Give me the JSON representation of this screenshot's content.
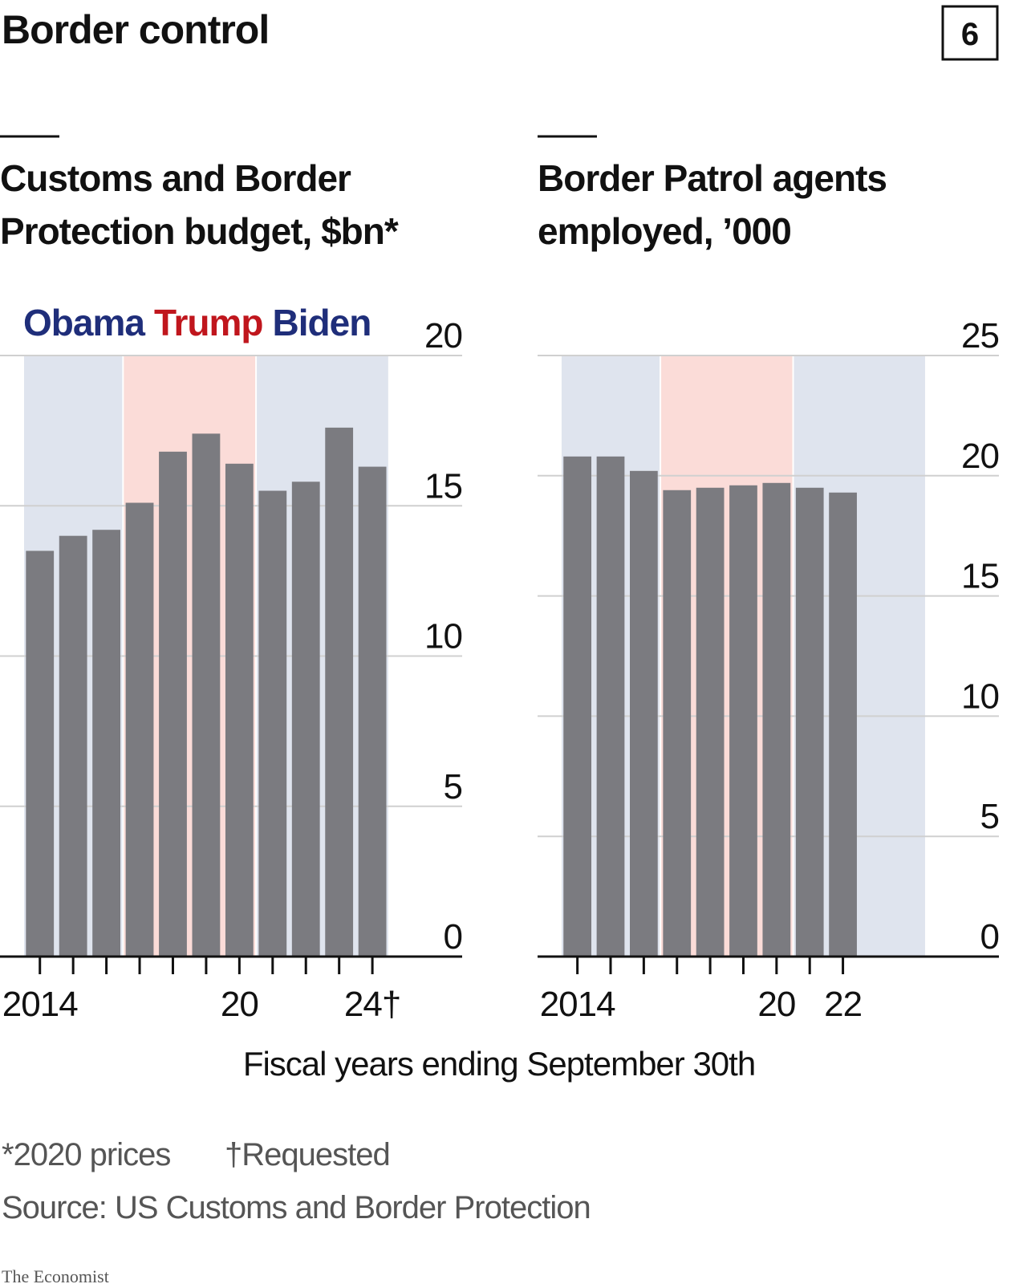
{
  "title": "Border control",
  "badge": "6",
  "xlabel": "Fiscal years ending September 30th",
  "footnotes": [
    "*2020 prices",
    "†Requested"
  ],
  "source": "Source: US Customs and Border Protection",
  "brand": "The Economist",
  "chart_data": [
    {
      "type": "bar",
      "title": [
        "Customs and Border",
        "Protection budget, $bn*"
      ],
      "x": [
        2014,
        2015,
        2016,
        2017,
        2018,
        2019,
        2020,
        2021,
        2022,
        2023,
        2024
      ],
      "values": [
        13.5,
        14.0,
        14.2,
        15.1,
        16.8,
        17.4,
        16.4,
        15.5,
        15.8,
        17.6,
        16.3
      ],
      "color": "#7b7b80",
      "xlim": [
        2012.8,
        2026.7
      ],
      "xticks": [
        2014,
        2015,
        2016,
        2017,
        2018,
        2019,
        2020,
        2021,
        2022,
        2023,
        2024
      ],
      "xticklabels": [
        {
          "value": 2014,
          "label": "2014"
        },
        {
          "value": 2020,
          "label": "20"
        },
        {
          "value": 2024,
          "label": "24†"
        }
      ],
      "ylim": [
        0,
        20
      ],
      "yticks": [
        0,
        5,
        10,
        15,
        20
      ],
      "grid": true,
      "periods": [
        {
          "name": "Obama",
          "from": 2013.5,
          "to": 2016.5,
          "color": "#dfe4ee",
          "label_color": "#1f2e7a"
        },
        {
          "name": "Trump",
          "from": 2016.5,
          "to": 2020.5,
          "color": "#fbdcd8",
          "label_color": "#c0161d"
        },
        {
          "name": "Biden",
          "from": 2020.5,
          "to": 2024.5,
          "color": "#dfe4ee",
          "label_color": "#1f2e7a"
        }
      ]
    },
    {
      "type": "bar",
      "title": [
        "Border Patrol agents",
        "employed, ’000"
      ],
      "x": [
        2014,
        2015,
        2016,
        2017,
        2018,
        2019,
        2020,
        2021,
        2022
      ],
      "values": [
        20.8,
        20.8,
        20.2,
        19.4,
        19.5,
        19.6,
        19.7,
        19.5,
        19.3
      ],
      "color": "#7b7b80",
      "xlim": [
        2012.8,
        2026.7
      ],
      "xticks": [
        2014,
        2015,
        2016,
        2017,
        2018,
        2019,
        2020,
        2021,
        2022
      ],
      "xticklabels": [
        {
          "value": 2014,
          "label": "2014"
        },
        {
          "value": 2020,
          "label": "20"
        },
        {
          "value": 2022,
          "label": "22"
        }
      ],
      "ylim": [
        0,
        25
      ],
      "yticks": [
        0,
        5,
        10,
        15,
        20,
        25
      ],
      "grid": true,
      "periods": [
        {
          "from": 2013.5,
          "to": 2016.5,
          "color": "#dfe4ee"
        },
        {
          "from": 2016.5,
          "to": 2020.5,
          "color": "#fbdcd8"
        },
        {
          "from": 2020.5,
          "to": 2024.5,
          "color": "#dfe4ee"
        }
      ]
    }
  ]
}
